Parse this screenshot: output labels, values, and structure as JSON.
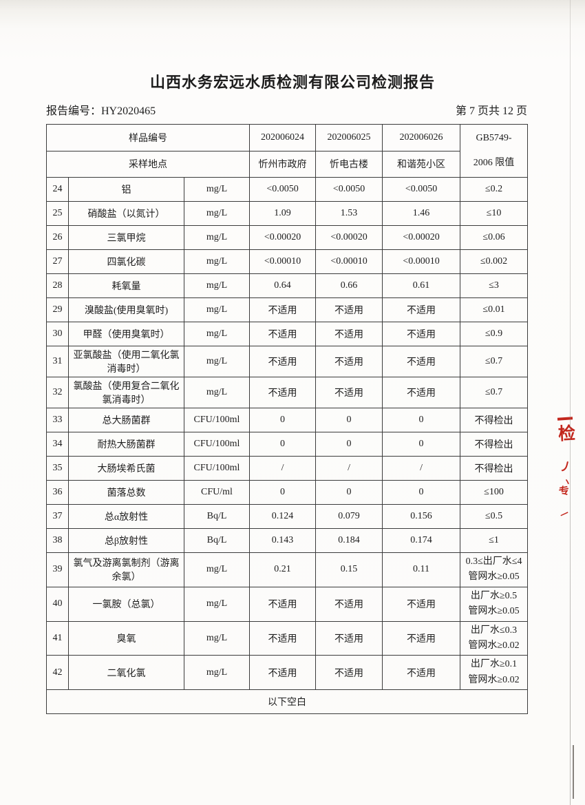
{
  "page": {
    "title": "山西水务宏远水质检测有限公司检测报告",
    "report_no": "报告编号：HY2020465",
    "page_indicator": "第 7 页共 12 页"
  },
  "table": {
    "header": {
      "sample_id_label": "样品编号",
      "location_label": "采样地点",
      "sample_ids": [
        "202006024",
        "202006025",
        "202006026"
      ],
      "locations": [
        "忻州市政府",
        "忻电古楼",
        "和谐苑小区"
      ],
      "limit_header": "GB5749-\n2006 限值"
    },
    "rows": [
      {
        "no": "24",
        "name": "铝",
        "unit": "mg/L",
        "values": [
          "<0.0050",
          "<0.0050",
          "<0.0050"
        ],
        "limit": "≤0.2"
      },
      {
        "no": "25",
        "name": "硝酸盐（以氮计）",
        "unit": "mg/L",
        "values": [
          "1.09",
          "1.53",
          "1.46"
        ],
        "limit": "≤10"
      },
      {
        "no": "26",
        "name": "三氯甲烷",
        "unit": "mg/L",
        "values": [
          "<0.00020",
          "<0.00020",
          "<0.00020"
        ],
        "limit": "≤0.06"
      },
      {
        "no": "27",
        "name": "四氯化碳",
        "unit": "mg/L",
        "values": [
          "<0.00010",
          "<0.00010",
          "<0.00010"
        ],
        "limit": "≤0.002"
      },
      {
        "no": "28",
        "name": "耗氧量",
        "unit": "mg/L",
        "values": [
          "0.64",
          "0.66",
          "0.61"
        ],
        "limit": "≤3"
      },
      {
        "no": "29",
        "name": "溴酸盐(使用臭氧时)",
        "unit": "mg/L",
        "values": [
          "不适用",
          "不适用",
          "不适用"
        ],
        "limit": "≤0.01"
      },
      {
        "no": "30",
        "name": "甲醛（使用臭氧时）",
        "unit": "mg/L",
        "values": [
          "不适用",
          "不适用",
          "不适用"
        ],
        "limit": "≤0.9"
      },
      {
        "no": "31",
        "name": "亚氯酸盐（使用二氧化氯消毒时）",
        "unit": "mg/L",
        "values": [
          "不适用",
          "不适用",
          "不适用"
        ],
        "limit": "≤0.7"
      },
      {
        "no": "32",
        "name": "氯酸盐（使用复合二氧化氯消毒时）",
        "unit": "mg/L",
        "values": [
          "不适用",
          "不适用",
          "不适用"
        ],
        "limit": "≤0.7"
      },
      {
        "no": "33",
        "name": "总大肠菌群",
        "unit": "CFU/100ml",
        "values": [
          "0",
          "0",
          "0"
        ],
        "limit": "不得检出"
      },
      {
        "no": "34",
        "name": "耐热大肠菌群",
        "unit": "CFU/100ml",
        "values": [
          "0",
          "0",
          "0"
        ],
        "limit": "不得检出"
      },
      {
        "no": "35",
        "name": "大肠埃希氏菌",
        "unit": "CFU/100ml",
        "values": [
          "/",
          "/",
          "/"
        ],
        "limit": "不得检出"
      },
      {
        "no": "36",
        "name": "菌落总数",
        "unit": "CFU/ml",
        "values": [
          "0",
          "0",
          "0"
        ],
        "limit": "≤100"
      },
      {
        "no": "37",
        "name": "总α放射性",
        "unit": "Bq/L",
        "values": [
          "0.124",
          "0.079",
          "0.156"
        ],
        "limit": "≤0.5"
      },
      {
        "no": "38",
        "name": "总β放射性",
        "unit": "Bq/L",
        "values": [
          "0.143",
          "0.184",
          "0.174"
        ],
        "limit": "≤1"
      },
      {
        "no": "39",
        "name": "氯气及游离氯制剂（游离余氯）",
        "unit": "mg/L",
        "values": [
          "0.21",
          "0.15",
          "0.11"
        ],
        "limit": "0.3≤出厂水≤4\n管网水≥0.05"
      },
      {
        "no": "40",
        "name": "一氯胺（总氯）",
        "unit": "mg/L",
        "values": [
          "不适用",
          "不适用",
          "不适用"
        ],
        "limit": "出厂水≥0.5\n管网水≥0.05"
      },
      {
        "no": "41",
        "name": "臭氧",
        "unit": "mg/L",
        "values": [
          "不适用",
          "不适用",
          "不适用"
        ],
        "limit": "出厂水≤0.3\n管网水≥0.02"
      },
      {
        "no": "42",
        "name": "二氧化氯",
        "unit": "mg/L",
        "values": [
          "不适用",
          "不适用",
          "不适用"
        ],
        "limit": "出厂水≥0.1\n管网水≥0.02"
      }
    ],
    "footer_note": "以下空白"
  },
  "stamp": {
    "color": "#c3271d",
    "glyphs": [
      "检",
      "丿",
      "丶",
      "专",
      "一"
    ]
  }
}
